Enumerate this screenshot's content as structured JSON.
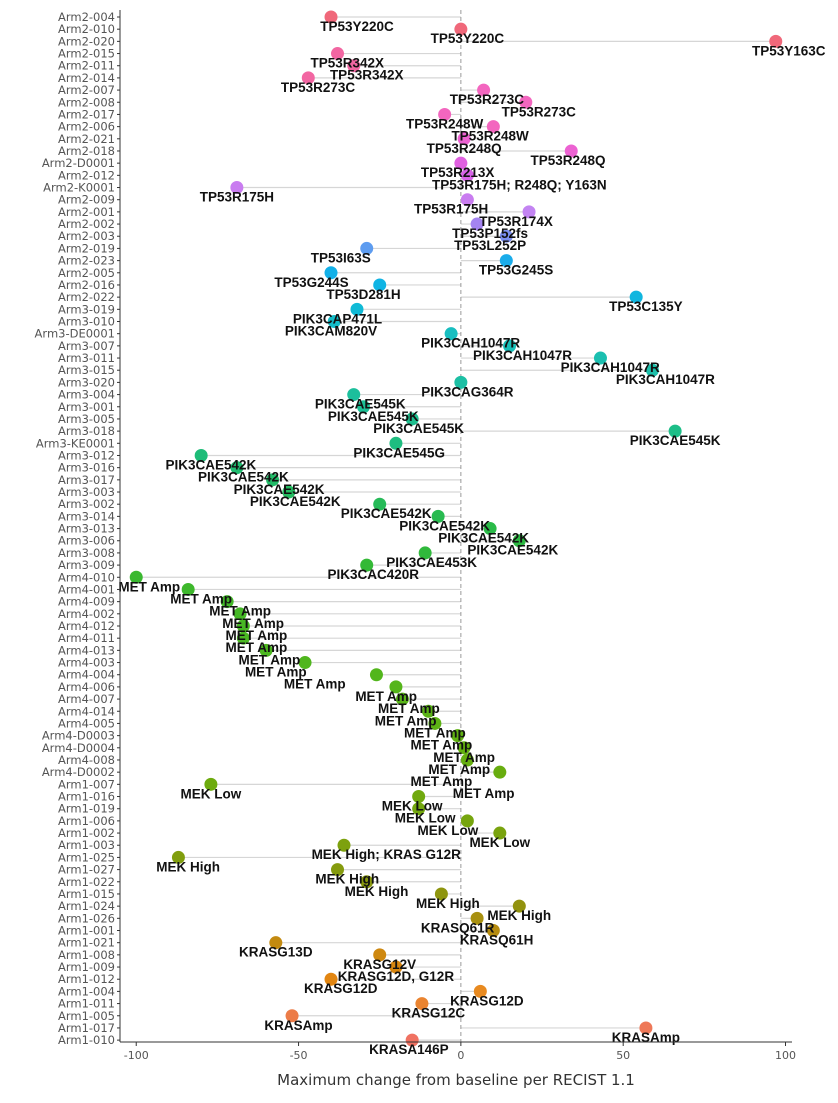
{
  "chart_data": {
    "type": "scatter",
    "title": "",
    "xlabel": "Maximum change from baseline per RECIST 1.1",
    "ylabel": "",
    "xlim": [
      -105,
      102
    ],
    "xticks": [
      -100,
      -50,
      0,
      50,
      100
    ],
    "reference_line_x": 0,
    "grid": false,
    "legend": "none",
    "points": [
      {
        "id": "Arm2-004",
        "x": -40,
        "label": "TP53Y220C",
        "color": "#f0687a",
        "lx": -32,
        "ly": 1
      },
      {
        "id": "Arm2-010",
        "x": 0,
        "label": "TP53Y220C",
        "color": "#f0687a",
        "lx": 2,
        "ly": 1
      },
      {
        "id": "Arm2-020",
        "x": 97,
        "label": "TP53Y163C",
        "color": "#f0687a",
        "lx": 101,
        "ly": 1
      },
      {
        "id": "Arm2-015",
        "x": -38,
        "label": "TP53R342X",
        "color": "#f266a2",
        "lx": -35,
        "ly": 1
      },
      {
        "id": "Arm2-011",
        "x": -33,
        "label": "TP53R342X",
        "color": "#f266a2",
        "lx": -29,
        "ly": 1
      },
      {
        "id": "Arm2-014",
        "x": -47,
        "label": "TP53R273C",
        "color": "#f266a2",
        "lx": -44,
        "ly": 1
      },
      {
        "id": "Arm2-007",
        "x": 7,
        "label": "TP53R273C",
        "color": "#f366bf",
        "lx": 8,
        "ly": 1
      },
      {
        "id": "Arm2-008",
        "x": 20,
        "label": "TP53R273C",
        "color": "#f366bf",
        "lx": 24,
        "ly": 1
      },
      {
        "id": "Arm2-017",
        "x": -5,
        "label": "TP53R248W",
        "color": "#f366bf",
        "lx": -5,
        "ly": 1
      },
      {
        "id": "Arm2-006",
        "x": 10,
        "label": "TP53R248W",
        "color": "#f366bf",
        "lx": 9,
        "ly": 1
      },
      {
        "id": "Arm2-021",
        "x": 1,
        "label": "TP53R248Q",
        "color": "#ec62d2",
        "lx": 1,
        "ly": 1
      },
      {
        "id": "Arm2-018",
        "x": 34,
        "label": "TP53R248Q",
        "color": "#ec62d2",
        "lx": 33,
        "ly": 1
      },
      {
        "id": "Arm2-D0001",
        "x": 0,
        "label": "TP53R213X",
        "color": "#e060e0",
        "lx": -1,
        "ly": 1
      },
      {
        "id": "Arm2-012",
        "x": 2,
        "label": "TP53R175H; R248Q; Y163N",
        "color": "#d864e8",
        "lx": 18,
        "ly": 1
      },
      {
        "id": "Arm2-K0001",
        "x": -69,
        "label": "TP53R175H",
        "color": "#c97cf0",
        "lx": -69,
        "ly": 1
      },
      {
        "id": "Arm2-009",
        "x": 2,
        "label": "TP53R175H",
        "color": "#c97cf0",
        "lx": -3,
        "ly": 1
      },
      {
        "id": "Arm2-001",
        "x": 21,
        "label": "TP53R174X",
        "color": "#c384f2",
        "lx": 17,
        "ly": 1
      },
      {
        "id": "Arm2-002",
        "x": 5,
        "label": "TP53P152fs",
        "color": "#a484f0",
        "lx": 9,
        "ly": 1
      },
      {
        "id": "Arm2-003",
        "x": 14,
        "label": "TP53L252P",
        "color": "#7b8ef0",
        "lx": 9,
        "ly": 1
      },
      {
        "id": "Arm2-019",
        "x": -29,
        "label": "TP53I63S",
        "color": "#5d9cf0",
        "lx": -37,
        "ly": 1
      },
      {
        "id": "Arm2-023",
        "x": 14,
        "label": "TP53G245S",
        "color": "#1aacea",
        "lx": 17,
        "ly": 1
      },
      {
        "id": "Arm2-005",
        "x": -40,
        "label": "TP53G244S",
        "color": "#12b0e8",
        "lx": -46,
        "ly": 1
      },
      {
        "id": "Arm2-016",
        "x": -25,
        "label": "TP53D281H",
        "color": "#10b4e4",
        "lx": -30,
        "ly": 1
      },
      {
        "id": "Arm2-022",
        "x": 54,
        "label": "TP53C135Y",
        "color": "#10b6df",
        "lx": 57,
        "ly": 1
      },
      {
        "id": "Arm3-019",
        "x": -32,
        "label": "PIK3CAP471L",
        "color": "#10bad6",
        "lx": -38,
        "ly": 1
      },
      {
        "id": "Arm3-010",
        "x": -39,
        "label": "PIK3CAM820V",
        "color": "#14bcc8",
        "lx": -40,
        "ly": 1
      },
      {
        "id": "Arm3-DE0001",
        "x": -3,
        "label": "PIK3CAH1047R",
        "color": "#18bec0",
        "lx": 3,
        "ly": 1
      },
      {
        "id": "Arm3-007",
        "x": 15,
        "label": "PIK3CAH1047R",
        "color": "#18bfb8",
        "lx": 19,
        "ly": 1
      },
      {
        "id": "Arm3-011",
        "x": 43,
        "label": "PIK3CAH1047R",
        "color": "#1bbfb0",
        "lx": 46,
        "ly": 1
      },
      {
        "id": "Arm3-015",
        "x": 59,
        "label": "PIK3CAH1047R",
        "color": "#1cbfaa",
        "lx": 63,
        "ly": 1
      },
      {
        "id": "Arm3-020",
        "x": 0,
        "label": "PIK3CAG364R",
        "color": "#1cbfa4",
        "lx": 2,
        "ly": 1
      },
      {
        "id": "Arm3-004",
        "x": -33,
        "label": "PIK3CAE545K",
        "color": "#1cbf9c",
        "lx": -31,
        "ly": 1
      },
      {
        "id": "Arm3-001",
        "x": -30,
        "label": "PIK3CAE545K",
        "color": "#1cbf95",
        "lx": -27,
        "ly": 1
      },
      {
        "id": "Arm3-005",
        "x": -15,
        "label": "PIK3CAE545K",
        "color": "#1dbe8e",
        "lx": -13,
        "ly": 1
      },
      {
        "id": "Arm3-018",
        "x": 66,
        "label": "PIK3CAE545K",
        "color": "#1dbe88",
        "lx": 66,
        "ly": 1
      },
      {
        "id": "Arm3-KE0001",
        "x": -20,
        "label": "PIK3CAE545G",
        "color": "#1ebd80",
        "lx": -19,
        "ly": 1
      },
      {
        "id": "Arm3-012",
        "x": -80,
        "label": "PIK3CAE542K",
        "color": "#1ebc78",
        "lx": -77,
        "ly": 1
      },
      {
        "id": "Arm3-016",
        "x": -69,
        "label": "PIK3CAE542K",
        "color": "#20bc70",
        "lx": -67,
        "ly": 1
      },
      {
        "id": "Arm3-017",
        "x": -58,
        "label": "PIK3CAE542K",
        "color": "#22bb68",
        "lx": -56,
        "ly": 1
      },
      {
        "id": "Arm3-003",
        "x": -53,
        "label": "PIK3CAE542K",
        "color": "#24bb60",
        "lx": -51,
        "ly": 1
      },
      {
        "id": "Arm3-002",
        "x": -25,
        "label": "PIK3CAE542K",
        "color": "#26ba58",
        "lx": -23,
        "ly": 1
      },
      {
        "id": "Arm3-014",
        "x": -7,
        "label": "PIK3CAE542K",
        "color": "#28ba50",
        "lx": -5,
        "ly": 1
      },
      {
        "id": "Arm3-013",
        "x": 9,
        "label": "PIK3CAE542K",
        "color": "#2aba48",
        "lx": 7,
        "ly": 1
      },
      {
        "id": "Arm3-006",
        "x": 18,
        "label": "PIK3CAE542K",
        "color": "#2db942",
        "lx": 16,
        "ly": 1
      },
      {
        "id": "Arm3-008",
        "x": -11,
        "label": "PIK3CAE453K",
        "color": "#30b93c",
        "lx": -9,
        "ly": 1
      },
      {
        "id": "Arm3-009",
        "x": -29,
        "label": "PIK3CAC420R",
        "color": "#33b936",
        "lx": -27,
        "ly": 1
      },
      {
        "id": "Arm4-010",
        "x": -100,
        "label": "MET Amp",
        "color": "#3ab830",
        "lx": -96,
        "ly": 1
      },
      {
        "id": "Arm4-001",
        "x": -84,
        "label": "MET Amp",
        "color": "#3eb82c",
        "lx": -80,
        "ly": 1
      },
      {
        "id": "Arm4-009",
        "x": -72,
        "label": "MET Amp",
        "color": "#42b828",
        "lx": -68,
        "ly": 1
      },
      {
        "id": "Arm4-002",
        "x": -68,
        "label": "MET Amp",
        "color": "#45b826",
        "lx": -64,
        "ly": 1
      },
      {
        "id": "Arm4-012",
        "x": -67,
        "label": "MET Amp",
        "color": "#48b824",
        "lx": -63,
        "ly": 1
      },
      {
        "id": "Arm4-011",
        "x": -67,
        "label": "MET Amp",
        "color": "#4ab822",
        "lx": -63,
        "ly": 1
      },
      {
        "id": "Arm4-013",
        "x": -60,
        "label": "MET Amp",
        "color": "#4cb720",
        "lx": -59,
        "ly": 1
      },
      {
        "id": "Arm4-003",
        "x": -48,
        "label": "MET Amp",
        "color": "#50b61e",
        "lx": -57,
        "ly": 1
      },
      {
        "id": "Arm4-004",
        "x": -26,
        "label": "MET Amp",
        "color": "#52b61c",
        "lx": -45,
        "ly": 1
      },
      {
        "id": "Arm4-006",
        "x": -20,
        "label": "MET Amp",
        "color": "#55b51a",
        "lx": -23,
        "ly": 1
      },
      {
        "id": "Arm4-007",
        "x": -18,
        "label": "MET Amp",
        "color": "#58b418",
        "lx": -16,
        "ly": 1
      },
      {
        "id": "Arm4-014",
        "x": -10,
        "label": "MET Amp",
        "color": "#5ab316",
        "lx": -17,
        "ly": 1
      },
      {
        "id": "Arm4-005",
        "x": -8,
        "label": "MET Amp",
        "color": "#5db214",
        "lx": -8,
        "ly": 1
      },
      {
        "id": "Arm4-D0003",
        "x": -1,
        "label": "MET Amp",
        "color": "#60b112",
        "lx": -6,
        "ly": 1
      },
      {
        "id": "Arm4-D0004",
        "x": 1,
        "label": "MET Amp",
        "color": "#62b010",
        "lx": 1,
        "ly": 1
      },
      {
        "id": "Arm4-008",
        "x": 2,
        "label": "MET Amp",
        "color": "#65ae10",
        "lx": -0.5,
        "ly": 1
      },
      {
        "id": "Arm4-D0002",
        "x": 12,
        "label": "MET Amp",
        "color": "#68ad0f",
        "lx": -6,
        "ly": 1
      },
      {
        "id": "Arm4-D0002b",
        "x": 12,
        "label": "MET Amp",
        "color": "#68ad0f",
        "lx": 7,
        "ly": 2
      },
      {
        "id": "Arm1-007",
        "x": -77,
        "label": "MEK Low",
        "color": "#6dab0e",
        "lx": -77,
        "ly": 1
      },
      {
        "id": "Arm1-016",
        "x": -13,
        "label": "MEK Low",
        "color": "#70a90e",
        "lx": -15,
        "ly": 1
      },
      {
        "id": "Arm1-019",
        "x": -13,
        "label": "MEK Low",
        "color": "#73a70e",
        "lx": -11,
        "ly": 1
      },
      {
        "id": "Arm1-006",
        "x": 2,
        "label": "MEK Low",
        "color": "#76a50e",
        "lx": -4,
        "ly": 1
      },
      {
        "id": "Arm1-002",
        "x": 12,
        "label": "MEK Low",
        "color": "#79a30e",
        "lx": 12,
        "ly": 1
      },
      {
        "id": "Arm1-003",
        "x": -36,
        "label": "MEK High; KRAS G12R",
        "color": "#7da10e",
        "lx": -23,
        "ly": 1
      },
      {
        "id": "Arm1-025",
        "x": -87,
        "label": "MEK High",
        "color": "#819e0e",
        "lx": -84,
        "ly": 1
      },
      {
        "id": "Arm1-027",
        "x": -38,
        "label": "MEK High",
        "color": "#859b0e",
        "lx": -35,
        "ly": 1
      },
      {
        "id": "Arm1-022",
        "x": -29,
        "label": "MEK High",
        "color": "#89980e",
        "lx": -26,
        "ly": 1
      },
      {
        "id": "Arm1-015",
        "x": -6,
        "label": "MEK High",
        "color": "#8e950e",
        "lx": -4,
        "ly": 1
      },
      {
        "id": "Arm1-024",
        "x": 18,
        "label": "MEK High",
        "color": "#92920e",
        "lx": 18,
        "ly": 1
      },
      {
        "id": "Arm1-026",
        "x": 5,
        "label": "KRASQ61R",
        "color": "#a89010",
        "lx": -1,
        "ly": 1
      },
      {
        "id": "Arm1-001",
        "x": 10,
        "label": "KRASQ61H",
        "color": "#b68c10",
        "lx": 11,
        "ly": 1
      },
      {
        "id": "Arm1-021",
        "x": -57,
        "label": "KRASG13D",
        "color": "#c38a10",
        "lx": -57,
        "ly": 1
      },
      {
        "id": "Arm1-008",
        "x": -25,
        "label": "KRASG12V",
        "color": "#ce8810",
        "lx": -25,
        "ly": 1
      },
      {
        "id": "Arm1-009",
        "x": -20,
        "label": "KRASG12D, G12R",
        "color": "#d88610",
        "lx": -20,
        "ly": 1
      },
      {
        "id": "Arm1-012",
        "x": -40,
        "label": "KRASG12D",
        "color": "#e28612",
        "lx": -37,
        "ly": 1
      },
      {
        "id": "Arm1-004",
        "x": 6,
        "label": "KRASG12D",
        "color": "#e88a20",
        "lx": 8,
        "ly": 1
      },
      {
        "id": "Arm1-011",
        "x": -12,
        "label": "KRASG12C",
        "color": "#ea8430",
        "lx": -10,
        "ly": 1
      },
      {
        "id": "Arm1-005",
        "x": -52,
        "label": "KRASAmp",
        "color": "#ec7c48",
        "lx": -50,
        "ly": 1
      },
      {
        "id": "Arm1-017",
        "x": 57,
        "label": "KRASAmp",
        "color": "#ee7858",
        "lx": 57,
        "ly": 1
      },
      {
        "id": "Arm1-010",
        "x": -15,
        "label": "KRASA146P",
        "color": "#f07262",
        "lx": -16,
        "ly": 1
      }
    ],
    "row_labels": [
      "Arm2-004",
      "Arm2-010",
      "Arm2-020",
      "Arm2-015",
      "Arm2-011",
      "Arm2-014",
      "Arm2-007",
      "Arm2-008",
      "Arm2-017",
      "Arm2-006",
      "Arm2-021",
      "Arm2-018",
      "Arm2-D0001",
      "Arm2-012",
      "Arm2-K0001",
      "Arm2-009",
      "Arm2-001",
      "Arm2-002",
      "Arm2-003",
      "Arm2-019",
      "Arm2-023",
      "Arm2-005",
      "Arm2-016",
      "Arm2-022",
      "Arm3-019",
      "Arm3-010",
      "Arm3-DE0001",
      "Arm3-007",
      "Arm3-011",
      "Arm3-015",
      "Arm3-020",
      "Arm3-004",
      "Arm3-001",
      "Arm3-005",
      "Arm3-018",
      "Arm3-KE0001",
      "Arm3-012",
      "Arm3-016",
      "Arm3-017",
      "Arm3-003",
      "Arm3-002",
      "Arm3-014",
      "Arm3-013",
      "Arm3-006",
      "Arm3-008",
      "Arm3-009",
      "Arm4-010",
      "Arm4-001",
      "Arm4-009",
      "Arm4-002",
      "Arm4-012",
      "Arm4-011",
      "Arm4-013",
      "Arm4-003",
      "Arm4-004",
      "Arm4-006",
      "Arm4-007",
      "Arm4-014",
      "Arm4-005",
      "Arm4-D0003",
      "Arm4-D0004",
      "Arm4-008",
      "Arm4-D0002",
      "Arm1-007",
      "Arm1-016",
      "Arm1-019",
      "Arm1-006",
      "Arm1-002",
      "Arm1-003",
      "Arm1-025",
      "Arm1-027",
      "Arm1-022",
      "Arm1-015",
      "Arm1-024",
      "Arm1-026",
      "Arm1-001",
      "Arm1-021",
      "Arm1-008",
      "Arm1-009",
      "Arm1-012",
      "Arm1-004",
      "Arm1-011",
      "Arm1-005",
      "Arm1-017",
      "Arm1-010"
    ]
  }
}
